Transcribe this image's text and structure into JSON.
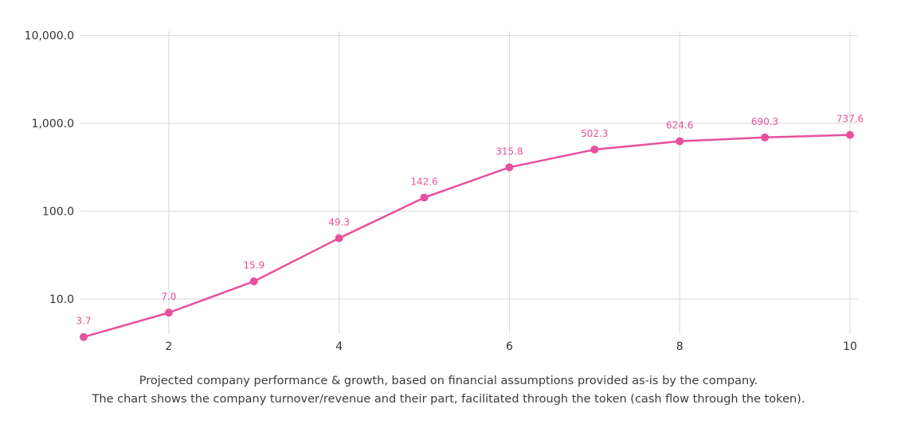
{
  "chart_data": {
    "type": "line",
    "scale": "log",
    "x": [
      1,
      2,
      3,
      4,
      5,
      6,
      7,
      8,
      9,
      10
    ],
    "series": [
      {
        "values": [
          3.7,
          7.0,
          15.9,
          49.3,
          142.6,
          315.8,
          502.3,
          624.6,
          690.3,
          737.6
        ]
      }
    ],
    "data_labels": [
      "3.7",
      "7.0",
      "15.9",
      "49.3",
      "142.6",
      "315.8",
      "502.3",
      "624.6",
      "690.3",
      "737.6"
    ],
    "y_ticks": [
      {
        "value": 10,
        "label": "10.0"
      },
      {
        "value": 100,
        "label": "100.0"
      },
      {
        "value": 1000,
        "label": "1,000.0"
      },
      {
        "value": 10000,
        "label": "10,000.0"
      }
    ],
    "x_ticks": [
      {
        "value": 2,
        "label": "2"
      },
      {
        "value": 4,
        "label": "4"
      },
      {
        "value": 6,
        "label": "6"
      },
      {
        "value": 8,
        "label": "8"
      },
      {
        "value": 10,
        "label": "10"
      }
    ],
    "xlim": [
      1,
      10
    ],
    "ylim": [
      3.7,
      10000
    ],
    "grid": true,
    "legend": "none",
    "line_color": "#e8509b"
  },
  "caption": {
    "line1": "Projected company performance & growth, based on financial assumptions provided as-is by the company.",
    "line2": "The chart shows the company turnover/revenue and their part, facilitated through the token (cash flow through the token)."
  }
}
